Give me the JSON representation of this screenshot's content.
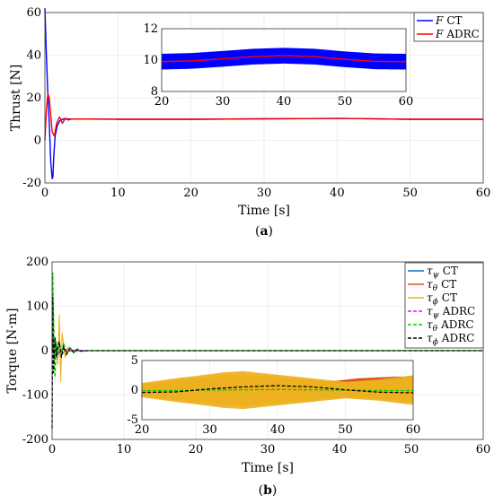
{
  "chart_data": [
    {
      "panel_label": "a",
      "type": "line",
      "xlabel": "Time [s]",
      "ylabel": "Thrust [N]",
      "xlim": [
        0,
        60
      ],
      "ylim": [
        -20,
        60
      ],
      "xticks": [
        "0",
        "10",
        "20",
        "30",
        "40",
        "50",
        "60"
      ],
      "yticks": [
        "-20",
        "0",
        "20",
        "40",
        "60"
      ],
      "grid": true,
      "legend_position": "top-right",
      "colors": {
        "ct": "#0000ff",
        "adrc": "#ff0000"
      },
      "legend": [
        {
          "symbol": "F",
          "suffix": "CT",
          "color": "#0000ff"
        },
        {
          "symbol": "F",
          "suffix": "ADRC",
          "color": "#ff0000"
        }
      ],
      "series": [
        {
          "name": "F CT",
          "x": [
            0,
            0.2,
            0.4,
            0.6,
            0.8,
            1.0,
            1.1,
            1.2,
            1.4,
            1.7,
            2.0,
            2.4,
            3.0,
            4.0,
            6,
            10,
            20,
            30,
            40,
            50,
            60
          ],
          "y": [
            62,
            40,
            22,
            8,
            -10,
            -18,
            -17,
            -8,
            2,
            7,
            9,
            10,
            10,
            10,
            10,
            9.9,
            9.9,
            10.1,
            10.3,
            9.9,
            9.9
          ]
        },
        {
          "name": "F ADRC",
          "x": [
            0,
            0.2,
            0.4,
            0.6,
            0.8,
            1.0,
            1.3,
            1.6,
            2.0,
            2.4,
            2.8,
            3.2,
            3.6,
            4.2,
            6,
            10,
            20,
            30,
            40,
            50,
            60
          ],
          "y": [
            0,
            14,
            22,
            20,
            12,
            4,
            2,
            8,
            11,
            8,
            10.5,
            9.5,
            10,
            10,
            10,
            9.9,
            9.9,
            10.1,
            10.3,
            9.9,
            9.9
          ]
        }
      ],
      "inset": {
        "xlim": [
          20,
          60
        ],
        "ylim": [
          8,
          12
        ],
        "xticks": [
          "20",
          "30",
          "40",
          "50",
          "60"
        ],
        "yticks": [
          "8",
          "10",
          "12"
        ],
        "ct_band_amplitude": 0.5,
        "mean": {
          "x": [
            20,
            25,
            30,
            35,
            40,
            45,
            50,
            55,
            60
          ],
          "y": [
            9.9,
            9.95,
            10.08,
            10.22,
            10.28,
            10.22,
            10.05,
            9.92,
            9.9
          ]
        }
      }
    },
    {
      "panel_label": "b",
      "type": "line",
      "xlabel": "Time [s]",
      "ylabel": "Torque [N·m]",
      "xlim": [
        0,
        60
      ],
      "ylim": [
        -200,
        200
      ],
      "xticks": [
        "0",
        "10",
        "20",
        "30",
        "40",
        "50",
        "60"
      ],
      "yticks": [
        "-200",
        "-100",
        "0",
        "100",
        "200"
      ],
      "grid": true,
      "legend_position": "top-right",
      "colors": {
        "psi_ct": "#0072bd",
        "theta_ct": "#d95319",
        "phi_ct": "#edb120",
        "psi_adrc": "#ff00ff",
        "theta_adrc": "#00cc00",
        "phi_adrc": "#000000"
      },
      "legend": [
        {
          "symbol": "τ",
          "sub": "ψ",
          "suffix": "CT",
          "color": "#0072bd",
          "dash": false
        },
        {
          "symbol": "τ",
          "sub": "θ",
          "suffix": "CT",
          "color": "#d95319",
          "dash": false
        },
        {
          "symbol": "τ",
          "sub": "ϕ",
          "suffix": "CT",
          "color": "#edb120",
          "dash": false
        },
        {
          "symbol": "τ",
          "sub": "ψ",
          "suffix": "ADRC",
          "color": "#ff00ff",
          "dash": true
        },
        {
          "symbol": "τ",
          "sub": "θ",
          "suffix": "ADRC",
          "color": "#00cc00",
          "dash": true
        },
        {
          "symbol": "τ",
          "sub": "ϕ",
          "suffix": "ADRC",
          "color": "#000000",
          "dash": true
        }
      ],
      "series": [
        {
          "name": "τψ CT",
          "x": [
            0,
            0.5,
            1.0,
            1.5,
            2.0,
            3.0,
            5,
            60
          ],
          "y": [
            0,
            10,
            -8,
            5,
            -3,
            1,
            0,
            0
          ]
        },
        {
          "name": "τθ CT",
          "x": [
            0,
            0.5,
            1.0,
            1.5,
            2.0,
            3.0,
            5,
            60
          ],
          "y": [
            0,
            -10,
            12,
            -6,
            3,
            -1,
            0,
            0
          ]
        },
        {
          "name": "τϕ CT",
          "x": [
            0,
            0.4,
            0.8,
            1.0,
            1.2,
            1.4,
            1.8,
            2.2,
            3.0,
            5,
            60
          ],
          "y": [
            0,
            20,
            -30,
            80,
            -70,
            40,
            -15,
            8,
            -2,
            0,
            0
          ]
        },
        {
          "name": "τψ ADRC",
          "x": [
            0,
            0.1,
            0.3,
            0.6,
            1.0,
            1.5,
            2.0,
            3.0,
            5,
            60
          ],
          "y": [
            0,
            30,
            -20,
            10,
            -5,
            3,
            -1,
            0,
            0,
            0
          ]
        },
        {
          "name": "τθ ADRC",
          "x": [
            0,
            0.1,
            0.2,
            0.4,
            0.6,
            0.8,
            1.0,
            1.3,
            1.6,
            2.0,
            2.5,
            3.0,
            3.5,
            4.0,
            5,
            60
          ],
          "y": [
            0,
            175,
            80,
            -60,
            20,
            -10,
            15,
            -12,
            18,
            -10,
            8,
            -5,
            4,
            -2,
            0,
            0
          ]
        },
        {
          "name": "τϕ ADRC",
          "x": [
            0,
            0.1,
            0.2,
            0.4,
            0.6,
            0.8,
            1.0,
            1.3,
            1.6,
            2.0,
            2.5,
            3.0,
            3.5,
            4.0,
            5,
            60
          ],
          "y": [
            -175,
            120,
            -50,
            30,
            -15,
            10,
            20,
            -15,
            10,
            -8,
            6,
            -4,
            3,
            -1,
            0,
            0
          ]
        }
      ],
      "inset": {
        "xlim": [
          20,
          60
        ],
        "ylim": [
          -5,
          5
        ],
        "xticks": [
          "20",
          "30",
          "40",
          "50",
          "60"
        ],
        "yticks": [
          "-5",
          "0",
          "5"
        ],
        "phi_ct_amplitude": {
          "t": [
            20,
            25,
            28,
            32,
            35,
            40,
            45,
            50,
            55,
            60
          ],
          "a": [
            1.2,
            2.0,
            2.4,
            3.0,
            3.2,
            2.6,
            2.0,
            1.4,
            1.8,
            2.5
          ]
        },
        "theta_ct_envelope": {
          "t": [
            20,
            28,
            30,
            33,
            37,
            40,
            45,
            48,
            52,
            58,
            60
          ],
          "lo": [
            -1.0,
            -1.0,
            -0.9,
            -0.5,
            0.8,
            1.0,
            0.2,
            -1.2,
            -0.4,
            0.8,
            0.8
          ],
          "hi": [
            0.0,
            0.0,
            0.4,
            1.2,
            1.0,
            1.3,
            0.9,
            1.5,
            2.0,
            2.3,
            2.2
          ]
        },
        "phi_adrc": {
          "x": [
            20,
            25,
            30,
            35,
            40,
            45,
            50,
            55,
            60
          ],
          "y": [
            -0.4,
            -0.3,
            0.2,
            0.55,
            0.75,
            0.55,
            0.05,
            -0.35,
            -0.45
          ]
        },
        "psi_adrc": {
          "x": [
            20,
            30,
            40,
            50,
            60
          ],
          "y": [
            -0.1,
            0.0,
            0.1,
            0.0,
            -0.1
          ]
        }
      }
    }
  ]
}
